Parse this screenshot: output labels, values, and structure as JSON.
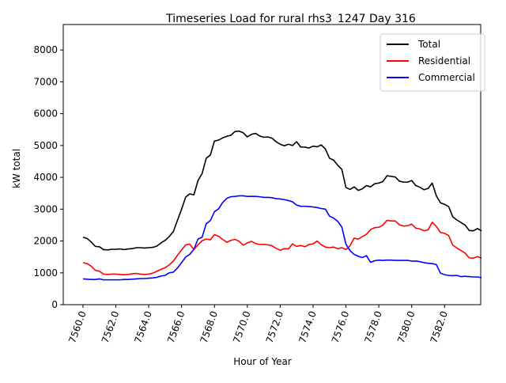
{
  "chart_data": {
    "type": "line",
    "title": "Timeseries Load for rural rhs3_1247  Day 316",
    "xlabel": "Hour of Year",
    "ylabel": "kW total",
    "xlim": [
      7558.8,
      7584.2
    ],
    "ylim": [
      0,
      8800
    ],
    "x_ticks": [
      7560,
      7562,
      7564,
      7566,
      7568,
      7570,
      7572,
      7574,
      7576,
      7578,
      7580,
      7582
    ],
    "x_tick_labels": [
      "7560.0",
      "7562.0",
      "7564.0",
      "7566.0",
      "7568.0",
      "7570.0",
      "7572.0",
      "7574.0",
      "7576.0",
      "7578.0",
      "7580.0",
      "7582.0"
    ],
    "y_ticks": [
      0,
      1000,
      2000,
      3000,
      4000,
      5000,
      6000,
      7000,
      8000
    ],
    "y_tick_labels": [
      "0",
      "1000",
      "2000",
      "3000",
      "4000",
      "5000",
      "6000",
      "7000",
      "8000"
    ],
    "grid": false,
    "legend_position": "top-right",
    "x_start": 7560,
    "x_step": 0.25,
    "series": [
      {
        "name": "Total",
        "color": "#000000",
        "values": [
          2120,
          2080,
          1970,
          1830,
          1820,
          1730,
          1720,
          1740,
          1740,
          1750,
          1730,
          1750,
          1760,
          1790,
          1790,
          1780,
          1790,
          1800,
          1840,
          1940,
          2020,
          2140,
          2300,
          2650,
          3000,
          3380,
          3480,
          3450,
          3900,
          4120,
          4600,
          4700,
          5140,
          5170,
          5240,
          5290,
          5320,
          5440,
          5450,
          5400,
          5270,
          5350,
          5380,
          5300,
          5260,
          5270,
          5230,
          5120,
          5040,
          4990,
          5040,
          5000,
          5120,
          4950,
          4950,
          4920,
          4980,
          4960,
          5020,
          4890,
          4600,
          4540,
          4380,
          4250,
          3680,
          3620,
          3700,
          3590,
          3640,
          3740,
          3700,
          3800,
          3820,
          3870,
          4050,
          4030,
          4010,
          3880,
          3850,
          3850,
          3900,
          3740,
          3690,
          3610,
          3650,
          3820,
          3420,
          3200,
          3150,
          3080,
          2760,
          2660,
          2580,
          2500,
          2330,
          2320,
          2390,
          2320
        ]
      },
      {
        "name": "Residential",
        "color": "#ff0000",
        "values": [
          1320,
          1290,
          1210,
          1080,
          1050,
          960,
          950,
          960,
          960,
          950,
          940,
          950,
          970,
          980,
          960,
          950,
          960,
          990,
          1050,
          1110,
          1160,
          1250,
          1370,
          1550,
          1720,
          1880,
          1900,
          1730,
          1880,
          2010,
          2060,
          2040,
          2200,
          2150,
          2050,
          1960,
          2020,
          2050,
          1990,
          1870,
          1940,
          1990,
          1920,
          1890,
          1890,
          1880,
          1850,
          1770,
          1710,
          1760,
          1750,
          1910,
          1830,
          1860,
          1820,
          1890,
          1910,
          2000,
          1880,
          1810,
          1790,
          1810,
          1760,
          1790,
          1730,
          1850,
          2090,
          2060,
          2140,
          2210,
          2360,
          2420,
          2430,
          2500,
          2650,
          2630,
          2630,
          2510,
          2470,
          2480,
          2530,
          2400,
          2380,
          2320,
          2350,
          2590,
          2460,
          2270,
          2240,
          2170,
          1870,
          1780,
          1700,
          1620,
          1470,
          1460,
          1510,
          1460
        ]
      },
      {
        "name": "Commercial",
        "color": "#0000ff",
        "values": [
          810,
          800,
          790,
          790,
          810,
          780,
          780,
          780,
          780,
          780,
          790,
          790,
          800,
          810,
          820,
          820,
          830,
          840,
          860,
          900,
          920,
          1000,
          1020,
          1150,
          1320,
          1500,
          1580,
          1740,
          2060,
          2120,
          2540,
          2640,
          2920,
          3010,
          3210,
          3340,
          3390,
          3400,
          3420,
          3420,
          3400,
          3400,
          3400,
          3390,
          3370,
          3370,
          3360,
          3330,
          3320,
          3300,
          3270,
          3230,
          3130,
          3090,
          3090,
          3080,
          3070,
          3050,
          3020,
          3000,
          2780,
          2720,
          2620,
          2440,
          1900,
          1700,
          1580,
          1520,
          1480,
          1540,
          1330,
          1380,
          1400,
          1390,
          1400,
          1400,
          1390,
          1390,
          1390,
          1390,
          1370,
          1370,
          1350,
          1320,
          1300,
          1290,
          1260,
          990,
          940,
          920,
          910,
          920,
          880,
          890,
          880,
          870,
          870,
          850
        ]
      }
    ]
  }
}
